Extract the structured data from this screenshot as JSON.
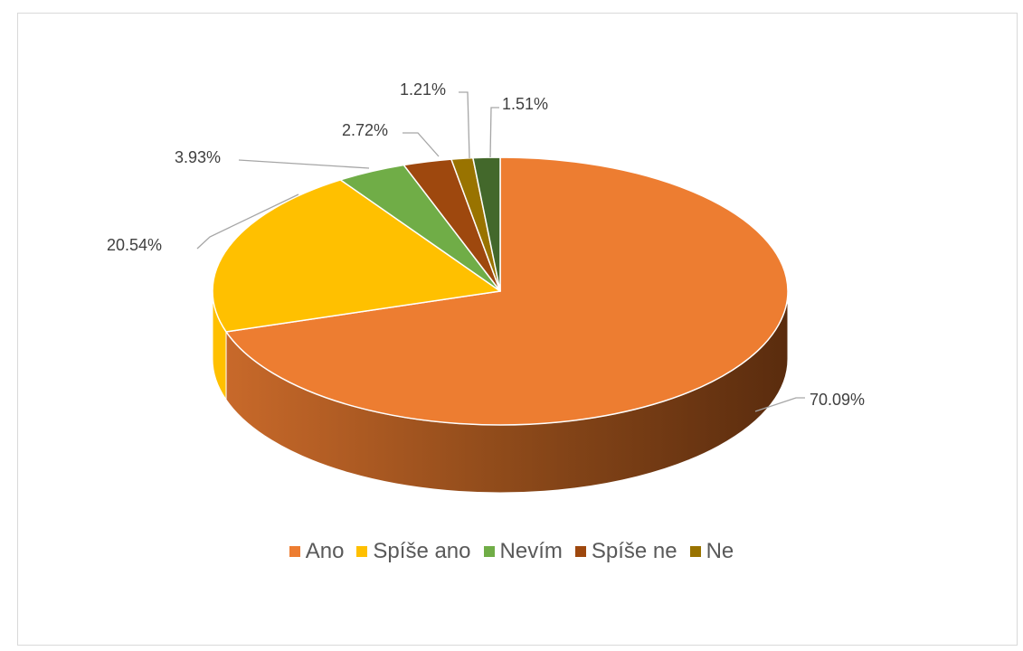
{
  "chart_data": {
    "type": "pie",
    "variant": "3d",
    "categories": [
      "Ano",
      "Spíše ano",
      "Nevím",
      "Spíše ne",
      "Ne",
      ""
    ],
    "values": [
      70.09,
      20.54,
      3.93,
      2.72,
      1.21,
      1.51
    ],
    "labels": [
      "70.09%",
      "20.54%",
      "3.93%",
      "2.72%",
      "1.21%",
      "1.51%"
    ],
    "colors": [
      "#ED7D31",
      "#FFC000",
      "#70AD47",
      "#9E480E",
      "#997300",
      "#43682B"
    ],
    "legend_position": "bottom",
    "legend": [
      {
        "name": "Ano",
        "color": "#ED7D31"
      },
      {
        "name": "Spíše ano",
        "color": "#FFC000"
      },
      {
        "name": "Nevím",
        "color": "#70AD47"
      },
      {
        "name": "Spíše ne",
        "color": "#9E480E"
      },
      {
        "name": "Ne",
        "color": "#997300"
      }
    ]
  }
}
